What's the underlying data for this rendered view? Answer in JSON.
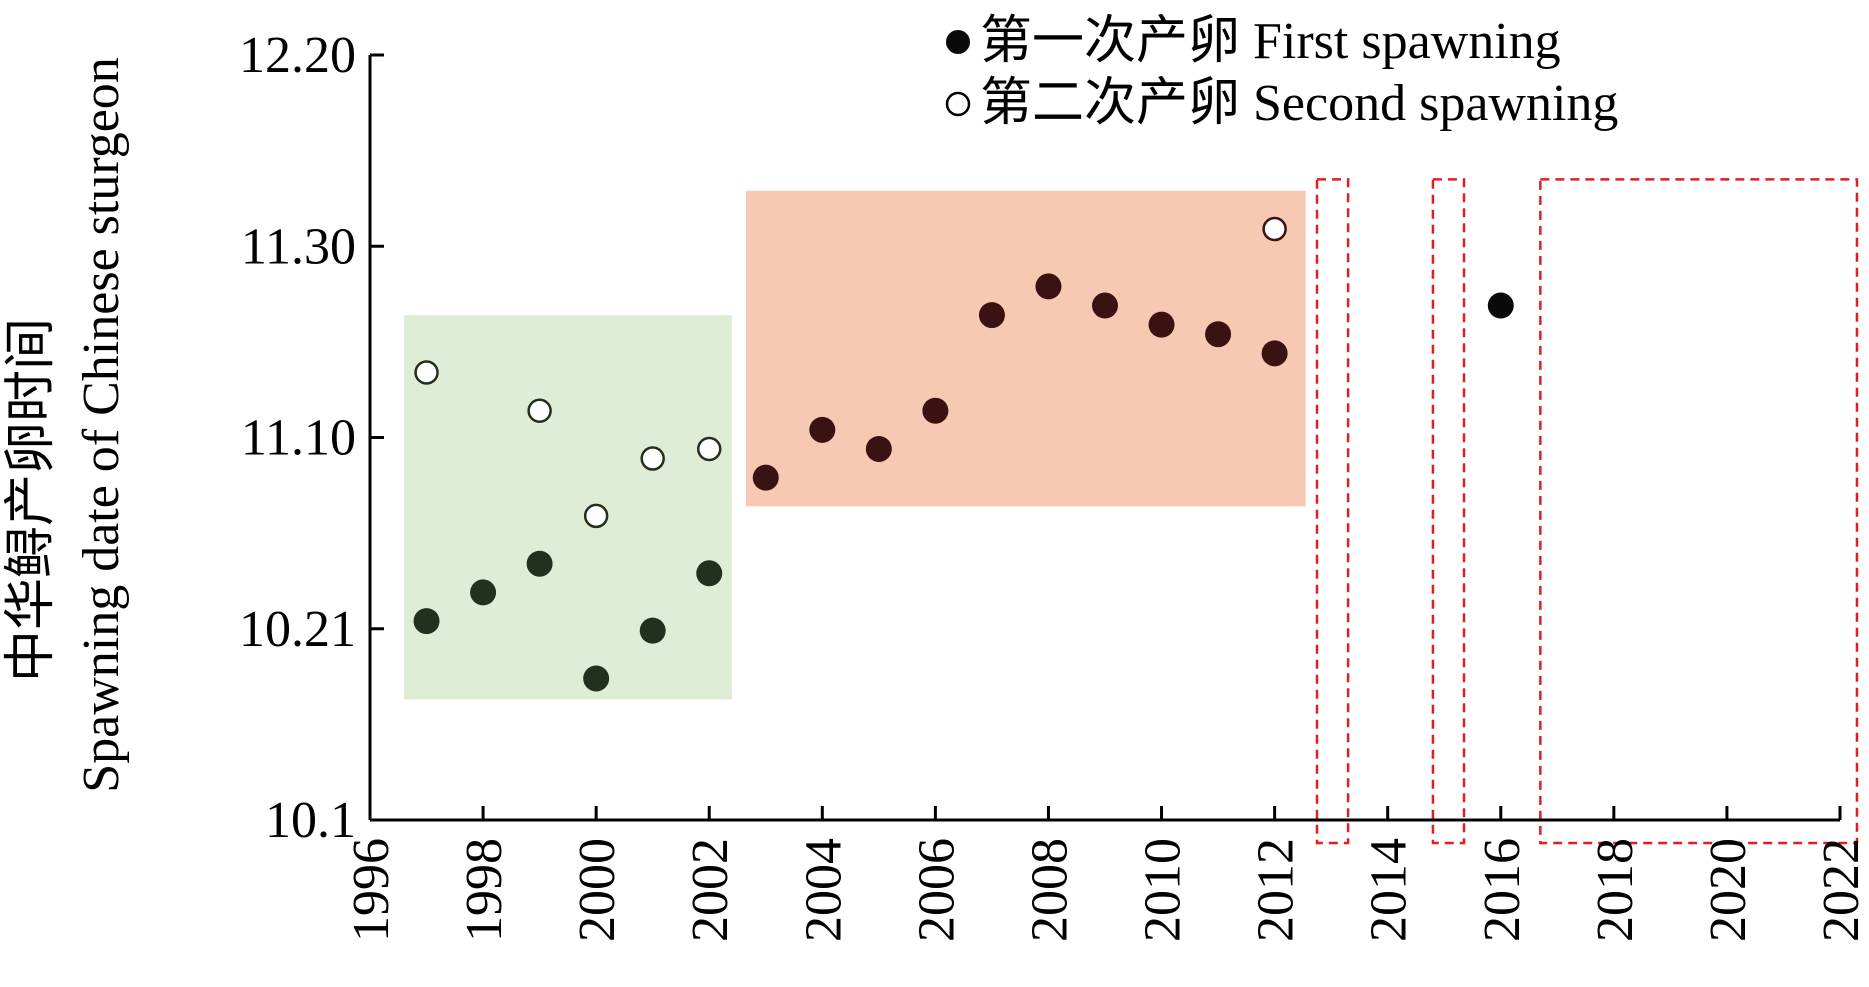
{
  "chart_data": {
    "type": "scatter",
    "xlabel": "",
    "ylabel_zh": "中华鲟产卵时间",
    "ylabel_en": "Spawning date of Chinese sturgeon",
    "xlim": [
      1996,
      2022
    ],
    "x_ticks": [
      "1996",
      "1998",
      "2000",
      "2002",
      "2004",
      "2006",
      "2008",
      "2010",
      "2012",
      "2014",
      "2016",
      "2018",
      "2020",
      "2022"
    ],
    "y_ticks": [
      "10.1",
      "10.21",
      "11.10",
      "11.30",
      "12.20"
    ],
    "y_scale": "ordinal date axis with tick labels at equal spacing",
    "legend_position": "top-right",
    "series": [
      {
        "name": "第一次产卵 First spawning",
        "marker": "filled-circle",
        "points": [
          {
            "x": 1997,
            "y_pos": 1.04
          },
          {
            "x": 1998,
            "y_pos": 1.19
          },
          {
            "x": 1999,
            "y_pos": 1.34
          },
          {
            "x": 2000,
            "y_pos": 0.74
          },
          {
            "x": 2001,
            "y_pos": 0.99
          },
          {
            "x": 2002,
            "y_pos": 1.29
          },
          {
            "x": 2003,
            "y_pos": 1.79
          },
          {
            "x": 2004,
            "y_pos": 2.04
          },
          {
            "x": 2005,
            "y_pos": 1.94
          },
          {
            "x": 2006,
            "y_pos": 2.14
          },
          {
            "x": 2007,
            "y_pos": 2.64
          },
          {
            "x": 2008,
            "y_pos": 2.79
          },
          {
            "x": 2009,
            "y_pos": 2.69
          },
          {
            "x": 2010,
            "y_pos": 2.59
          },
          {
            "x": 2011,
            "y_pos": 2.54
          },
          {
            "x": 2012,
            "y_pos": 2.44
          },
          {
            "x": 2016,
            "y_pos": 2.69
          }
        ]
      },
      {
        "name": "第二次产卵 Second spawning",
        "marker": "open-circle",
        "points": [
          {
            "x": 1997,
            "y_pos": 2.34
          },
          {
            "x": 1999,
            "y_pos": 2.14
          },
          {
            "x": 2000,
            "y_pos": 1.59
          },
          {
            "x": 2001,
            "y_pos": 1.89
          },
          {
            "x": 2002,
            "y_pos": 1.94
          },
          {
            "x": 2012,
            "y_pos": 3.09
          }
        ]
      }
    ],
    "regions": [
      {
        "type": "shaded",
        "color": "#e0edd6",
        "x": [
          1996.6,
          2002.4
        ],
        "y_pos": [
          0.63,
          2.64
        ]
      },
      {
        "type": "shaded",
        "color": "#f7c8b2",
        "x": [
          2002.65,
          2012.55
        ],
        "y_pos": [
          1.64,
          3.29
        ]
      },
      {
        "type": "dashed-box",
        "color": "#e02020",
        "x": [
          2012.75,
          2013.3
        ],
        "y_pos": [
          -0.12,
          3.35
        ]
      },
      {
        "type": "dashed-box",
        "color": "#e02020",
        "x": [
          2014.8,
          2015.35
        ],
        "y_pos": [
          -0.12,
          3.35
        ]
      },
      {
        "type": "dashed-box",
        "color": "#e02020",
        "x": [
          2016.7,
          2022.3
        ],
        "y_pos": [
          -0.12,
          3.35
        ]
      }
    ],
    "colors": {
      "green_points": "#24301e",
      "red_points": "#3a1212",
      "post_points": "#0a0a0a",
      "open_edge_green": "#24301e",
      "open_edge_red": "#3a1212"
    },
    "legend": [
      {
        "marker": "filled-circle",
        "label": "第一次产卵 First spawning"
      },
      {
        "marker": "open-circle",
        "label": "第二次产卵 Second spawning"
      }
    ]
  }
}
